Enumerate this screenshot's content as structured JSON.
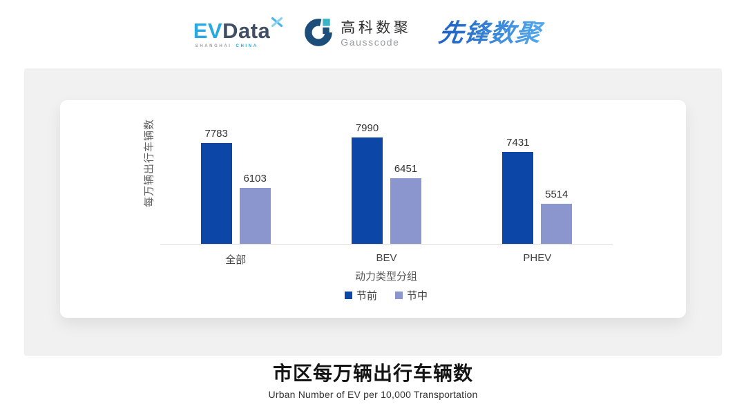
{
  "header": {
    "evdata": {
      "ev": "EV",
      "data": "Data",
      "sub_left": "SHANGHAI",
      "sub_right": "CHINA"
    },
    "gausscode": {
      "name_cn": "高科数聚",
      "name_en": "Gausscode"
    },
    "pioneer": {
      "text": "先锋数聚"
    }
  },
  "chart_data": {
    "type": "bar",
    "categories": [
      "全部",
      "BEV",
      "PHEV"
    ],
    "series": [
      {
        "name": "节前",
        "color": "#0c47a8",
        "values": [
          7783,
          7990,
          7431
        ]
      },
      {
        "name": "节中",
        "color": "#8b96ce",
        "values": [
          6103,
          6451,
          5514
        ]
      }
    ],
    "xlabel": "动力类型分组",
    "ylabel": "每万辆出行车辆数",
    "ylim": [
      4000,
      8400
    ],
    "grid": false,
    "legend_position": "bottom",
    "value_labels": true
  },
  "footer": {
    "title": "市区每万辆出行车辆数",
    "subtitle": "Urban Number of EV per 10,000 Transportation"
  },
  "icons": {
    "evdata_mark": "pinwheel-x",
    "gausscode_mark": "g-ring"
  },
  "colors": {
    "series_pre": "#0c47a8",
    "series_mid": "#8b96ce",
    "panel_bg": "#f1f1f2",
    "card_bg": "#ffffff",
    "axis_line": "#dcdcdc",
    "evdata_cyan": "#29a9e1",
    "evdata_slate": "#414f66",
    "gausscode_navy": "#1d4e7a",
    "gausscode_teal": "#38b6c6",
    "pioneer_gradient_start": "#1b5fc4",
    "pioneer_gradient_end": "#55aaec"
  }
}
